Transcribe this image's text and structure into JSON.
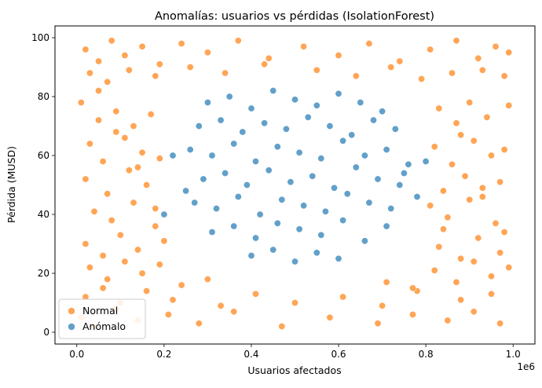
{
  "chart_data": {
    "type": "scatter",
    "title": "Anomalías: usuarios vs pérdidas (IsolationForest)",
    "xlabel": "Usuarios afectados",
    "ylabel": "Pérdida (MUSD)",
    "x_offset_label": "1e6",
    "xlim": [
      -0.05,
      1.05
    ],
    "ylim": [
      -4,
      104
    ],
    "x_ticks": [
      0.0,
      0.2,
      0.4,
      0.6,
      0.8,
      1.0
    ],
    "x_tick_labels": [
      "0.0",
      "0.2",
      "0.4",
      "0.6",
      "0.8",
      "1.0"
    ],
    "y_ticks": [
      0,
      20,
      40,
      60,
      80,
      100
    ],
    "y_tick_labels": [
      "0",
      "20",
      "40",
      "60",
      "80",
      "100"
    ],
    "grid": false,
    "legend_position": "lower-left",
    "series": [
      {
        "name": "Normal",
        "color": "#ff7f0e",
        "x": [
          0.02,
          0.05,
          0.08,
          0.11,
          0.15,
          0.19,
          0.24,
          0.3,
          0.37,
          0.44,
          0.52,
          0.6,
          0.67,
          0.74,
          0.81,
          0.87,
          0.92,
          0.96,
          0.99,
          0.03,
          0.07,
          0.12,
          0.18,
          0.26,
          0.34,
          0.43,
          0.55,
          0.64,
          0.72,
          0.79,
          0.86,
          0.93,
          0.98,
          0.01,
          0.04,
          0.09,
          0.14,
          0.21,
          0.28,
          0.36,
          0.47,
          0.58,
          0.69,
          0.77,
          0.85,
          0.91,
          0.97,
          0.02,
          0.06,
          0.1,
          0.16,
          0.22,
          0.33,
          0.41,
          0.5,
          0.61,
          0.7,
          0.78,
          0.88,
          0.95,
          0.01,
          0.05,
          0.09,
          0.13,
          0.17,
          0.83,
          0.87,
          0.9,
          0.94,
          0.99,
          0.03,
          0.06,
          0.11,
          0.15,
          0.19,
          0.82,
          0.86,
          0.91,
          0.95,
          0.98,
          0.02,
          0.07,
          0.12,
          0.16,
          0.84,
          0.89,
          0.93,
          0.97,
          0.04,
          0.08,
          0.13,
          0.18,
          0.81,
          0.85,
          0.9,
          0.96,
          0.02,
          0.06,
          0.1,
          0.14,
          0.2,
          0.83,
          0.88,
          0.92,
          0.97,
          0.03,
          0.07,
          0.11,
          0.15,
          0.19,
          0.82,
          0.87,
          0.91,
          0.95,
          0.99,
          0.05,
          0.09,
          0.14,
          0.18,
          0.84,
          0.88,
          0.93,
          0.98,
          0.24,
          0.3,
          0.77,
          0.71
        ],
        "y": [
          96,
          92,
          99,
          94,
          97,
          91,
          98,
          95,
          99,
          93,
          97,
          94,
          98,
          92,
          96,
          99,
          93,
          97,
          95,
          88,
          85,
          89,
          87,
          90,
          88,
          91,
          89,
          87,
          90,
          86,
          88,
          89,
          87,
          5,
          2,
          8,
          4,
          6,
          3,
          7,
          2,
          5,
          3,
          6,
          4,
          7,
          3,
          12,
          15,
          10,
          14,
          11,
          9,
          13,
          10,
          12,
          9,
          14,
          11,
          13,
          78,
          72,
          75,
          70,
          74,
          76,
          71,
          78,
          73,
          77,
          64,
          58,
          66,
          61,
          59,
          63,
          57,
          65,
          60,
          62,
          52,
          47,
          55,
          50,
          48,
          53,
          46,
          51,
          41,
          38,
          44,
          36,
          43,
          39,
          45,
          37,
          30,
          26,
          33,
          28,
          31,
          29,
          25,
          32,
          27,
          22,
          18,
          24,
          20,
          23,
          21,
          17,
          24,
          19,
          22,
          82,
          68,
          56,
          42,
          35,
          67,
          49,
          34,
          16,
          18,
          15,
          17
        ]
      },
      {
        "name": "Anómalo",
        "color": "#1f77b4",
        "x": [
          0.3,
          0.35,
          0.4,
          0.45,
          0.5,
          0.55,
          0.6,
          0.65,
          0.7,
          0.28,
          0.33,
          0.38,
          0.43,
          0.48,
          0.53,
          0.58,
          0.63,
          0.68,
          0.73,
          0.26,
          0.31,
          0.36,
          0.41,
          0.46,
          0.51,
          0.56,
          0.61,
          0.66,
          0.71,
          0.76,
          0.29,
          0.34,
          0.39,
          0.44,
          0.49,
          0.54,
          0.59,
          0.64,
          0.69,
          0.74,
          0.27,
          0.32,
          0.37,
          0.42,
          0.47,
          0.52,
          0.57,
          0.62,
          0.67,
          0.72,
          0.31,
          0.36,
          0.41,
          0.46,
          0.51,
          0.56,
          0.61,
          0.66,
          0.71,
          0.4,
          0.45,
          0.5,
          0.55,
          0.6,
          0.25,
          0.75,
          0.22,
          0.78,
          0.2,
          0.8
        ],
        "y": [
          78,
          80,
          76,
          82,
          79,
          77,
          81,
          78,
          75,
          70,
          72,
          68,
          71,
          69,
          73,
          70,
          67,
          72,
          69,
          62,
          60,
          64,
          58,
          63,
          61,
          59,
          65,
          60,
          62,
          57,
          52,
          54,
          50,
          55,
          51,
          53,
          49,
          56,
          52,
          50,
          44,
          42,
          46,
          40,
          45,
          43,
          41,
          47,
          44,
          42,
          34,
          36,
          32,
          37,
          35,
          33,
          38,
          31,
          36,
          26,
          28,
          24,
          27,
          25,
          48,
          54,
          60,
          46,
          40,
          58
        ]
      }
    ]
  }
}
